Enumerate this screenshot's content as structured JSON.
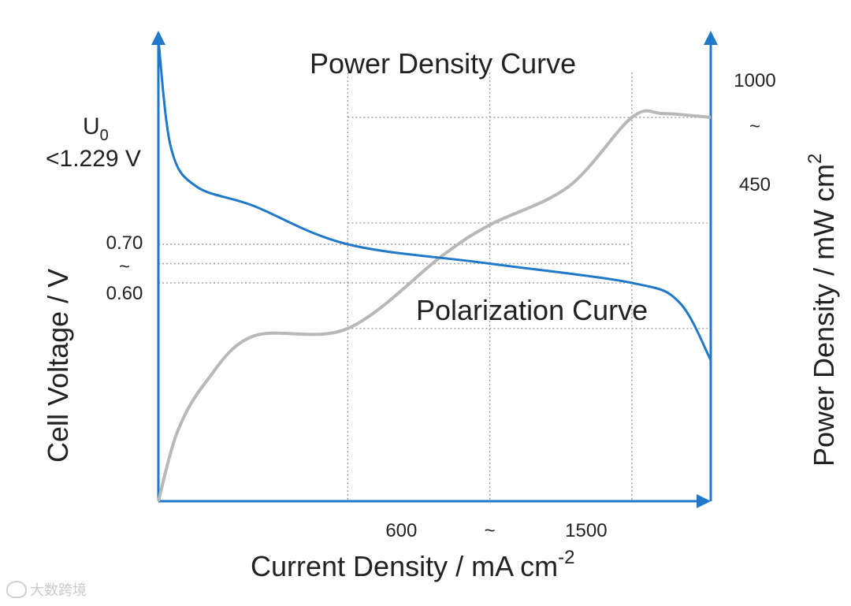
{
  "chart_data": {
    "type": "line",
    "xlabel": "Current Density / mA cm",
    "xlabel_sup": "-2",
    "ylabel_left": "Cell Voltage / V",
    "ylabel_right": "Power Density / mW cm",
    "ylabel_right_sup": "2",
    "x_ticks": [
      "600",
      "~",
      "1500"
    ],
    "y_left_ticks": [
      "0.70",
      "~",
      "0.60"
    ],
    "y_right_ticks": [
      "1000",
      "~",
      "450"
    ],
    "u0_label": "U",
    "u0_sub": "0",
    "u0_value": "<1.229 V",
    "annotations": {
      "power_curve": "Power Density Curve",
      "polarization_curve": "Polarization Curve"
    },
    "colors": {
      "axis": "#1f78c8",
      "polarization": "#1f78c8",
      "power": "#b8b8b8",
      "reference_lines": "#a0a0a0"
    },
    "reference_levels": {
      "x": [
        600,
        1050,
        1500
      ],
      "voltage": [
        0.6,
        0.65,
        0.7
      ],
      "power": [
        450,
        725,
        1000
      ]
    },
    "series": [
      {
        "name": "Polarization Curve",
        "axis": "left",
        "points": [
          [
            0,
            1.229
          ],
          [
            40,
            0.95
          ],
          [
            120,
            0.85
          ],
          [
            300,
            0.8
          ],
          [
            600,
            0.7
          ],
          [
            1050,
            0.65
          ],
          [
            1500,
            0.6
          ],
          [
            1650,
            0.55
          ],
          [
            1750,
            0.4
          ]
        ]
      },
      {
        "name": "Power Density Curve",
        "axis": "right",
        "points": [
          [
            0,
            0
          ],
          [
            60,
            180
          ],
          [
            150,
            310
          ],
          [
            300,
            430
          ],
          [
            600,
            450
          ],
          [
            900,
            640
          ],
          [
            1050,
            720
          ],
          [
            1300,
            820
          ],
          [
            1500,
            1000
          ],
          [
            1600,
            1010
          ],
          [
            1750,
            1000
          ]
        ]
      }
    ]
  },
  "watermark": {
    "text": "大数跨境"
  }
}
